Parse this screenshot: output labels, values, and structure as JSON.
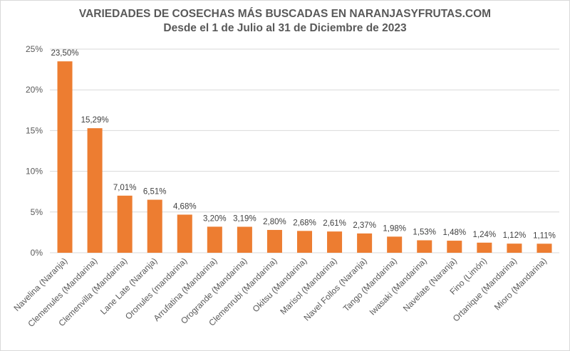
{
  "chart_data": {
    "type": "bar",
    "title": "VARIEDADES DE COSECHAS MÁS BUSCADAS EN NARANJASYFRUTAS.COM",
    "subtitle": "Desde el 1 de Julio al 31 de Diciembre de 2023",
    "xlabel": "",
    "ylabel": "",
    "ylim": [
      0,
      25
    ],
    "yticks": [
      0,
      5,
      10,
      15,
      20,
      25
    ],
    "ytick_labels": [
      "0%",
      "5%",
      "10%",
      "15%",
      "20%",
      "25%"
    ],
    "grid": true,
    "legend": "none",
    "bar_color": "#ED7D31",
    "categories": [
      "Navelina (Naranja)",
      "Clemenules (Mandarina)",
      "Clemenvilla (Mandarina)",
      "Lane Late (Naranja)",
      "Oronules (mandarina)",
      "Arrufatina (Mandarina)",
      "Orogrande (Mandarina)",
      "Clemenrubi (Mandarina)",
      "Okitsu (Mandarina)",
      "Marisol (Mandarina)",
      "Navel Follos (Naranja)",
      "Tango (Mandarina)",
      "Iwasaki (Mandarina)",
      "Navelate (Naranja)",
      "Fino (Limón)",
      "Ortanique (Mandarina)",
      "Mioro (Mandarina)"
    ],
    "values": [
      23.5,
      15.29,
      7.01,
      6.51,
      4.68,
      3.2,
      3.19,
      2.8,
      2.68,
      2.61,
      2.37,
      1.98,
      1.53,
      1.48,
      1.24,
      1.12,
      1.11
    ],
    "data_labels": [
      "23,50%",
      "15,29%",
      "7,01%",
      "6,51%",
      "4,68%",
      "3,20%",
      "3,19%",
      "2,80%",
      "2,68%",
      "2,61%",
      "2,37%",
      "1,98%",
      "1,53%",
      "1,48%",
      "1,24%",
      "1,12%",
      "1,11%"
    ]
  }
}
